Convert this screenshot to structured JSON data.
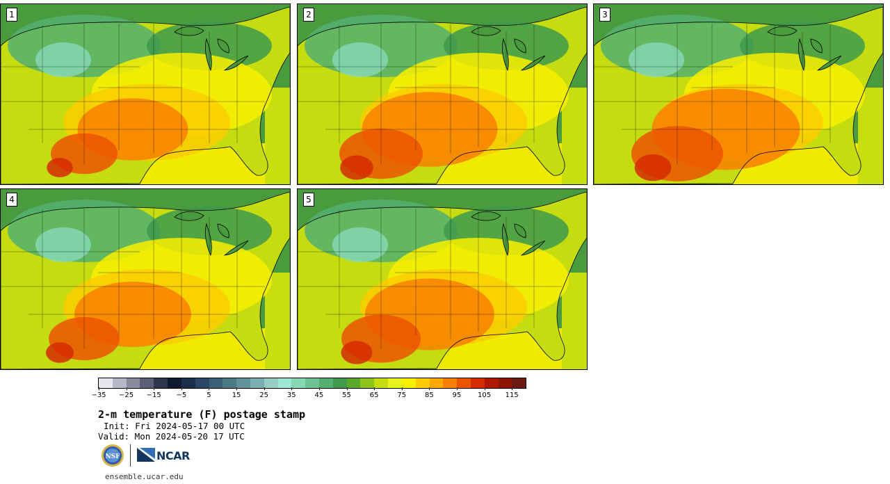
{
  "panels": [
    {
      "label": "1",
      "hot": 0.55
    },
    {
      "label": "2",
      "hot": 0.75
    },
    {
      "label": "3",
      "hot": 0.85
    },
    {
      "label": "4",
      "hot": 0.6
    },
    {
      "label": "5",
      "hot": 0.7
    }
  ],
  "colorbar": {
    "colors": [
      "#e6e6ee",
      "#b5b8c6",
      "#878b9c",
      "#5b6078",
      "#2e3650",
      "#0f1a30",
      "#1c2e4e",
      "#2b4766",
      "#3a6078",
      "#4e7a88",
      "#62929a",
      "#7aaeb0",
      "#98ccc4",
      "#9ee6d4",
      "#86d8b4",
      "#6cc494",
      "#54b070",
      "#3f9a4c",
      "#5aa82c",
      "#8ec41c",
      "#c4dc10",
      "#e8f21c",
      "#f8f000",
      "#fccc00",
      "#fca800",
      "#f88000",
      "#ec5400",
      "#d42c00",
      "#b01800",
      "#8c1400",
      "#6e1a10"
    ],
    "ticks": [
      "−35",
      "−25",
      "−15",
      "−5",
      "5",
      "15",
      "25",
      "35",
      "45",
      "55",
      "65",
      "75",
      "85",
      "95",
      "105",
      "115"
    ]
  },
  "title": "2-m temperature (F) postage stamp",
  "init": "Init: Fri 2024-05-17 00 UTC",
  "valid": "Valid: Mon 2024-05-20 17 UTC",
  "logos": {
    "nsf": "NSF",
    "ncar": "NCAR"
  },
  "site": "ensemble.ucar.edu"
}
